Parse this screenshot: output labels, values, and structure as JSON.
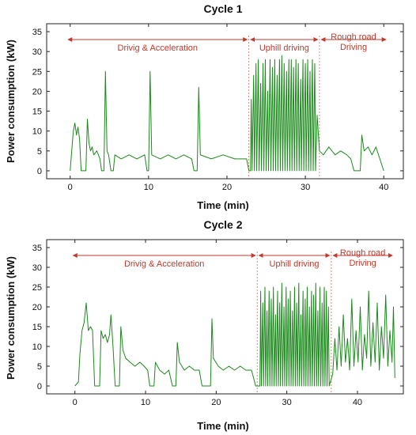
{
  "colors": {
    "series": "#1a8a1a",
    "annotation": "#c0392b",
    "axis": "#222222"
  },
  "chart_data": [
    {
      "type": "line",
      "title": "Cycle 1",
      "xlabel": "Time (min)",
      "ylabel": "Power consumption (kW)",
      "xlim": [
        -3,
        42.5
      ],
      "ylim": [
        -2,
        37
      ],
      "xticks": [
        0,
        10,
        20,
        30,
        40
      ],
      "yticks": [
        0,
        5,
        10,
        15,
        20,
        25,
        30,
        35
      ],
      "grid": false,
      "annotations": [
        {
          "label": "Drivig & Acceleration",
          "x_start": -0.5,
          "x_end": 22.8
        },
        {
          "label": "Uphill driving",
          "x_start": 22.8,
          "x_end": 31.8
        },
        {
          "label": "Rough road\nDriving",
          "x_start": 31.8,
          "x_end": 40.5
        }
      ],
      "series": [
        {
          "points": [
            [
              0,
              0
            ],
            [
              0.2,
              5
            ],
            [
              0.4,
              10
            ],
            [
              0.6,
              12
            ],
            [
              0.8,
              9
            ],
            [
              1.0,
              11
            ],
            [
              1.2,
              8
            ],
            [
              1.4,
              0
            ],
            [
              2.0,
              0
            ],
            [
              2.2,
              13
            ],
            [
              2.4,
              7
            ],
            [
              2.6,
              5
            ],
            [
              2.8,
              6
            ],
            [
              3.0,
              4
            ],
            [
              3.4,
              5
            ],
            [
              3.8,
              3
            ],
            [
              4.0,
              0
            ],
            [
              4.3,
              0
            ],
            [
              4.5,
              25
            ],
            [
              4.7,
              5
            ],
            [
              4.9,
              4
            ],
            [
              5.2,
              0
            ],
            [
              5.5,
              0
            ],
            [
              5.7,
              4
            ],
            [
              6.5,
              3
            ],
            [
              7.5,
              4
            ],
            [
              8.5,
              3
            ],
            [
              9.5,
              4
            ],
            [
              9.8,
              0
            ],
            [
              10.0,
              0
            ],
            [
              10.2,
              25
            ],
            [
              10.4,
              4
            ],
            [
              11.5,
              3
            ],
            [
              12.5,
              4
            ],
            [
              13.5,
              3
            ],
            [
              14.5,
              4
            ],
            [
              15.5,
              3
            ],
            [
              15.8,
              0
            ],
            [
              16.2,
              0
            ],
            [
              16.4,
              21
            ],
            [
              16.6,
              4
            ],
            [
              18,
              3
            ],
            [
              19.5,
              4
            ],
            [
              21,
              3
            ],
            [
              22.5,
              3
            ],
            [
              22.8,
              0
            ],
            [
              23.0,
              0
            ],
            [
              23.1,
              18
            ],
            [
              23.2,
              0
            ],
            [
              23.4,
              24
            ],
            [
              23.5,
              0
            ],
            [
              23.7,
              27
            ],
            [
              23.8,
              0
            ],
            [
              24.0,
              28
            ],
            [
              24.1,
              0
            ],
            [
              24.3,
              22
            ],
            [
              24.4,
              0
            ],
            [
              24.6,
              27
            ],
            [
              24.7,
              0
            ],
            [
              24.9,
              28
            ],
            [
              25.0,
              0
            ],
            [
              25.2,
              20
            ],
            [
              25.3,
              0
            ],
            [
              25.5,
              28
            ],
            [
              25.6,
              0
            ],
            [
              25.8,
              26
            ],
            [
              25.9,
              0
            ],
            [
              26.1,
              28
            ],
            [
              26.2,
              0
            ],
            [
              26.4,
              24
            ],
            [
              26.5,
              0
            ],
            [
              26.7,
              28
            ],
            [
              26.8,
              0
            ],
            [
              27.0,
              29
            ],
            [
              27.1,
              0
            ],
            [
              27.3,
              27
            ],
            [
              27.4,
              0
            ],
            [
              27.6,
              25
            ],
            [
              27.7,
              0
            ],
            [
              27.9,
              28
            ],
            [
              28.0,
              0
            ],
            [
              28.2,
              28
            ],
            [
              28.3,
              0
            ],
            [
              28.5,
              26
            ],
            [
              28.6,
              0
            ],
            [
              28.8,
              28
            ],
            [
              28.9,
              0
            ],
            [
              29.1,
              27
            ],
            [
              29.2,
              0
            ],
            [
              29.4,
              23
            ],
            [
              29.5,
              0
            ],
            [
              29.7,
              28
            ],
            [
              29.8,
              0
            ],
            [
              30.0,
              27
            ],
            [
              30.1,
              0
            ],
            [
              30.3,
              28
            ],
            [
              30.4,
              0
            ],
            [
              30.6,
              25
            ],
            [
              30.7,
              0
            ],
            [
              30.9,
              28
            ],
            [
              31.0,
              0
            ],
            [
              31.2,
              27
            ],
            [
              31.3,
              0
            ],
            [
              31.5,
              14
            ],
            [
              31.8,
              5
            ],
            [
              32.3,
              4
            ],
            [
              33,
              6
            ],
            [
              33.8,
              4
            ],
            [
              34.5,
              5
            ],
            [
              35.3,
              4
            ],
            [
              35.8,
              3
            ],
            [
              36.2,
              0
            ],
            [
              37.0,
              0
            ],
            [
              37.2,
              9
            ],
            [
              37.5,
              5
            ],
            [
              38.0,
              6
            ],
            [
              38.5,
              4
            ],
            [
              39.0,
              6
            ],
            [
              39.5,
              3
            ],
            [
              40.0,
              0
            ]
          ]
        }
      ]
    },
    {
      "type": "line",
      "title": "Cycle 2",
      "xlabel": "Time (min)",
      "ylabel": "Power consumption (kW)",
      "xlim": [
        -4,
        46.5
      ],
      "ylim": [
        -2,
        37
      ],
      "xticks": [
        0,
        10,
        20,
        30,
        40
      ],
      "yticks": [
        0,
        5,
        10,
        15,
        20,
        25,
        30,
        35
      ],
      "grid": false,
      "annotations": [
        {
          "label": "Drivig & Acceleration",
          "x_start": -0.5,
          "x_end": 25.8
        },
        {
          "label": "Uphill driving",
          "x_start": 25.8,
          "x_end": 36.3
        },
        {
          "label": "Rough road\nDriving",
          "x_start": 36.3,
          "x_end": 45.2
        }
      ],
      "series": [
        {
          "points": [
            [
              0,
              0
            ],
            [
              0.5,
              1
            ],
            [
              0.7,
              8
            ],
            [
              1.0,
              14
            ],
            [
              1.3,
              16
            ],
            [
              1.6,
              21
            ],
            [
              1.9,
              14
            ],
            [
              2.2,
              15
            ],
            [
              2.5,
              14
            ],
            [
              2.8,
              0
            ],
            [
              3.5,
              0
            ],
            [
              3.7,
              14
            ],
            [
              4.0,
              12
            ],
            [
              4.3,
              13
            ],
            [
              4.6,
              11
            ],
            [
              4.9,
              13
            ],
            [
              5.1,
              18
            ],
            [
              5.4,
              10
            ],
            [
              5.7,
              0
            ],
            [
              6.3,
              0
            ],
            [
              6.5,
              15
            ],
            [
              6.8,
              9
            ],
            [
              7.2,
              7
            ],
            [
              7.8,
              6
            ],
            [
              8.5,
              5
            ],
            [
              9.2,
              6
            ],
            [
              9.8,
              5
            ],
            [
              10.3,
              4
            ],
            [
              10.6,
              0
            ],
            [
              11.2,
              0
            ],
            [
              11.4,
              6
            ],
            [
              12.0,
              4
            ],
            [
              12.7,
              3
            ],
            [
              13.3,
              4
            ],
            [
              13.8,
              0
            ],
            [
              14.3,
              0
            ],
            [
              14.5,
              11
            ],
            [
              14.8,
              6
            ],
            [
              15.5,
              4
            ],
            [
              16.2,
              5
            ],
            [
              16.9,
              4
            ],
            [
              17.6,
              4
            ],
            [
              18.0,
              0
            ],
            [
              19.2,
              0
            ],
            [
              19.4,
              17
            ],
            [
              19.6,
              7
            ],
            [
              20.3,
              5
            ],
            [
              21.0,
              4
            ],
            [
              21.8,
              5
            ],
            [
              22.6,
              4
            ],
            [
              23.4,
              5
            ],
            [
              24.2,
              4
            ],
            [
              25.0,
              4
            ],
            [
              25.6,
              0
            ],
            [
              26.2,
              0
            ],
            [
              26.3,
              24
            ],
            [
              26.4,
              0
            ],
            [
              26.6,
              21
            ],
            [
              26.7,
              0
            ],
            [
              26.9,
              25
            ],
            [
              27.0,
              0
            ],
            [
              27.2,
              19
            ],
            [
              27.3,
              0
            ],
            [
              27.5,
              24
            ],
            [
              27.6,
              0
            ],
            [
              27.8,
              22
            ],
            [
              27.9,
              0
            ],
            [
              28.1,
              25
            ],
            [
              28.2,
              0
            ],
            [
              28.4,
              18
            ],
            [
              28.5,
              0
            ],
            [
              28.7,
              24
            ],
            [
              28.8,
              0
            ],
            [
              29.0,
              21
            ],
            [
              29.1,
              0
            ],
            [
              29.3,
              26
            ],
            [
              29.4,
              0
            ],
            [
              29.6,
              20
            ],
            [
              29.7,
              0
            ],
            [
              29.9,
              25
            ],
            [
              30.0,
              0
            ],
            [
              30.2,
              22
            ],
            [
              30.3,
              0
            ],
            [
              30.5,
              24
            ],
            [
              30.6,
              0
            ],
            [
              30.8,
              19
            ],
            [
              30.9,
              0
            ],
            [
              31.1,
              25
            ],
            [
              31.2,
              0
            ],
            [
              31.4,
              21
            ],
            [
              31.5,
              0
            ],
            [
              31.7,
              26
            ],
            [
              31.8,
              0
            ],
            [
              32.0,
              18
            ],
            [
              32.1,
              0
            ],
            [
              32.3,
              24
            ],
            [
              32.4,
              0
            ],
            [
              32.6,
              22
            ],
            [
              32.7,
              0
            ],
            [
              32.9,
              25
            ],
            [
              33.0,
              0
            ],
            [
              33.2,
              20
            ],
            [
              33.3,
              0
            ],
            [
              33.5,
              24
            ],
            [
              33.6,
              0
            ],
            [
              33.8,
              23
            ],
            [
              33.9,
              0
            ],
            [
              34.1,
              26
            ],
            [
              34.2,
              0
            ],
            [
              34.4,
              19
            ],
            [
              34.5,
              0
            ],
            [
              34.7,
              25
            ],
            [
              34.8,
              0
            ],
            [
              35.0,
              21
            ],
            [
              35.1,
              0
            ],
            [
              35.3,
              25
            ],
            [
              35.4,
              0
            ],
            [
              35.6,
              24
            ],
            [
              35.7,
              0
            ],
            [
              35.9,
              20
            ],
            [
              36.0,
              0
            ],
            [
              36.5,
              3
            ],
            [
              36.8,
              12
            ],
            [
              37.1,
              4
            ],
            [
              37.4,
              15
            ],
            [
              37.7,
              5
            ],
            [
              38.0,
              18
            ],
            [
              38.3,
              6
            ],
            [
              38.6,
              12
            ],
            [
              38.9,
              4
            ],
            [
              39.2,
              22
            ],
            [
              39.5,
              5
            ],
            [
              39.8,
              14
            ],
            [
              40.1,
              6
            ],
            [
              40.4,
              20
            ],
            [
              40.7,
              4
            ],
            [
              41.0,
              13
            ],
            [
              41.3,
              7
            ],
            [
              41.6,
              24
            ],
            [
              41.9,
              5
            ],
            [
              42.2,
              16
            ],
            [
              42.5,
              6
            ],
            [
              42.8,
              21
            ],
            [
              43.1,
              4
            ],
            [
              43.4,
              15
            ],
            [
              43.7,
              7
            ],
            [
              44.0,
              23
            ],
            [
              44.3,
              5
            ],
            [
              44.6,
              14
            ],
            [
              44.9,
              6
            ],
            [
              45.1,
              20
            ],
            [
              45.3,
              2
            ]
          ]
        }
      ]
    }
  ]
}
